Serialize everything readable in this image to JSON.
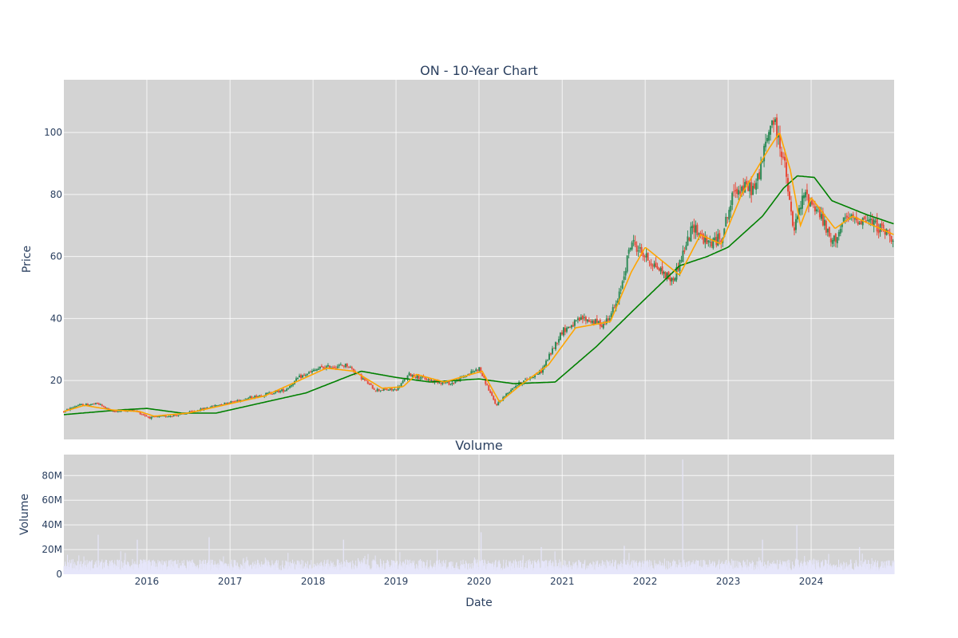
{
  "chart_data": [
    {
      "type": "candlestick",
      "title": "ON - 10-Year Chart",
      "ylabel": "Price",
      "ylim": [
        1,
        117
      ],
      "yticks": [
        20,
        40,
        60,
        80,
        100
      ],
      "xlim": [
        "2015-01-01",
        "2024-12-31"
      ],
      "grid": true,
      "colors": {
        "up": "#2e8b57",
        "down": "#e74c3c",
        "short_ma": "#ffa500",
        "long_ma": "#008000",
        "plot_bg": "#d3d3d3"
      },
      "series": [
        {
          "kind": "ohlc"
        },
        {
          "kind": "moving_average_short"
        },
        {
          "kind": "moving_average_long"
        }
      ],
      "close_approx": [
        [
          "2015-01-01",
          10
        ],
        [
          "2015-03-01",
          12
        ],
        [
          "2015-06-01",
          12.5
        ],
        [
          "2015-08-01",
          10
        ],
        [
          "2015-11-01",
          10.5
        ],
        [
          "2016-01-15",
          8
        ],
        [
          "2016-06-01",
          9
        ],
        [
          "2016-11-01",
          12
        ],
        [
          "2017-01-01",
          13
        ],
        [
          "2017-06-01",
          15.5
        ],
        [
          "2017-09-01",
          17
        ],
        [
          "2017-11-01",
          21
        ],
        [
          "2018-02-01",
          24
        ],
        [
          "2018-06-01",
          25
        ],
        [
          "2018-08-01",
          21
        ],
        [
          "2018-10-01",
          17
        ],
        [
          "2019-01-01",
          17
        ],
        [
          "2019-03-01",
          22
        ],
        [
          "2019-06-01",
          20
        ],
        [
          "2019-09-01",
          19
        ],
        [
          "2020-01-01",
          24
        ],
        [
          "2020-03-15",
          12
        ],
        [
          "2020-06-01",
          18
        ],
        [
          "2020-10-01",
          23
        ],
        [
          "2021-01-01",
          36
        ],
        [
          "2021-04-01",
          40
        ],
        [
          "2021-07-01",
          38
        ],
        [
          "2021-09-01",
          45
        ],
        [
          "2021-11-01",
          65
        ],
        [
          "2022-01-01",
          60
        ],
        [
          "2022-05-01",
          52
        ],
        [
          "2022-08-01",
          70
        ],
        [
          "2022-10-01",
          64
        ],
        [
          "2022-12-01",
          66
        ],
        [
          "2023-02-01",
          82
        ],
        [
          "2023-05-01",
          82
        ],
        [
          "2023-07-15",
          105
        ],
        [
          "2023-09-01",
          92
        ],
        [
          "2023-10-15",
          68
        ],
        [
          "2023-12-01",
          80
        ],
        [
          "2024-02-01",
          75
        ],
        [
          "2024-04-01",
          64
        ],
        [
          "2024-06-01",
          72
        ],
        [
          "2024-09-01",
          72
        ],
        [
          "2024-12-31",
          66
        ]
      ],
      "short_ma_approx": [
        [
          "2015-01-01",
          10
        ],
        [
          "2015-04-01",
          12
        ],
        [
          "2015-08-01",
          10.5
        ],
        [
          "2015-12-01",
          10
        ],
        [
          "2016-02-01",
          8.5
        ],
        [
          "2016-07-01",
          9.5
        ],
        [
          "2016-12-01",
          12
        ],
        [
          "2017-06-01",
          15
        ],
        [
          "2017-11-01",
          20
        ],
        [
          "2018-03-01",
          24
        ],
        [
          "2018-07-01",
          23
        ],
        [
          "2018-11-01",
          17.5
        ],
        [
          "2019-02-01",
          18
        ],
        [
          "2019-04-01",
          22
        ],
        [
          "2019-08-01",
          19.5
        ],
        [
          "2020-01-15",
          23
        ],
        [
          "2020-04-01",
          13
        ],
        [
          "2020-07-01",
          18.5
        ],
        [
          "2020-11-01",
          25
        ],
        [
          "2021-03-01",
          37
        ],
        [
          "2021-08-01",
          39
        ],
        [
          "2021-11-01",
          55
        ],
        [
          "2022-01-01",
          63
        ],
        [
          "2022-06-01",
          54
        ],
        [
          "2022-09-01",
          67
        ],
        [
          "2022-12-01",
          64
        ],
        [
          "2023-03-01",
          80
        ],
        [
          "2023-07-01",
          95
        ],
        [
          "2023-08-15",
          100
        ],
        [
          "2023-10-01",
          88
        ],
        [
          "2023-11-15",
          70
        ],
        [
          "2024-01-01",
          79
        ],
        [
          "2024-04-15",
          69
        ],
        [
          "2024-07-01",
          73
        ],
        [
          "2024-12-31",
          67
        ]
      ],
      "long_ma_approx": [
        [
          "2015-01-01",
          9
        ],
        [
          "2015-09-01",
          10.5
        ],
        [
          "2016-01-01",
          11
        ],
        [
          "2016-06-01",
          9.5
        ],
        [
          "2016-11-01",
          9.5
        ],
        [
          "2017-06-01",
          13
        ],
        [
          "2017-12-01",
          16
        ],
        [
          "2018-08-01",
          23
        ],
        [
          "2019-01-01",
          21
        ],
        [
          "2019-06-01",
          19.5
        ],
        [
          "2020-01-01",
          20.5
        ],
        [
          "2020-06-01",
          19
        ],
        [
          "2020-12-01",
          19.5
        ],
        [
          "2021-06-01",
          31
        ],
        [
          "2021-11-01",
          42
        ],
        [
          "2022-06-01",
          57
        ],
        [
          "2022-10-01",
          60
        ],
        [
          "2023-01-01",
          63
        ],
        [
          "2023-06-01",
          73
        ],
        [
          "2023-09-01",
          82
        ],
        [
          "2023-11-01",
          86
        ],
        [
          "2024-01-15",
          85.5
        ],
        [
          "2024-04-01",
          78
        ],
        [
          "2024-09-01",
          73.5
        ],
        [
          "2024-12-31",
          70.5
        ]
      ]
    },
    {
      "type": "bar",
      "title": "Volume",
      "xlabel": "Date",
      "ylabel": "Volume",
      "ylim": [
        0,
        97000000
      ],
      "yticks": [
        0,
        20000000,
        40000000,
        60000000,
        80000000
      ],
      "ytick_labels": [
        "0",
        "20M",
        "40M",
        "60M",
        "80M"
      ],
      "xticks": [
        "2016",
        "2017",
        "2018",
        "2019",
        "2020",
        "2021",
        "2022",
        "2023",
        "2024"
      ],
      "colors": {
        "bar": "#e6e6fa",
        "plot_bg": "#d3d3d3"
      },
      "spikes_approx": [
        [
          "2015-06-01",
          32000000
        ],
        [
          "2015-11-20",
          28000000
        ],
        [
          "2016-10-01",
          30000000
        ],
        [
          "2018-05-15",
          28000000
        ],
        [
          "2019-07-01",
          20000000
        ],
        [
          "2020-01-10",
          34000000
        ],
        [
          "2020-10-01",
          22000000
        ],
        [
          "2021-10-01",
          23000000
        ],
        [
          "2022-06-15",
          93000000
        ],
        [
          "2023-06-01",
          28000000
        ],
        [
          "2023-10-30",
          40000000
        ],
        [
          "2024-08-01",
          22000000
        ]
      ],
      "typical_range": [
        3000000,
        12000000
      ]
    }
  ]
}
